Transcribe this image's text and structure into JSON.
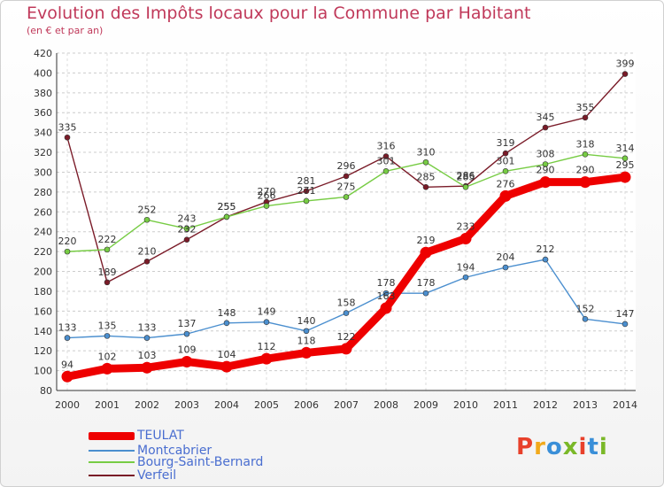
{
  "title": "Evolution des Impôts locaux pour la Commune par Habitant",
  "subtitle": "(en € et par an)",
  "logo": {
    "parts": [
      "P",
      "r",
      "o",
      "x",
      "i",
      "t",
      "i"
    ],
    "colors": [
      "#e8402a",
      "#f2a91b",
      "#3a8fd8",
      "#7ab828",
      "#e8402a",
      "#3a8fd8",
      "#7ab828"
    ]
  },
  "chart_data": {
    "type": "line",
    "title": "Evolution des Impôts locaux pour la Commune par Habitant",
    "subtitle": "(en € et par an)",
    "xlabel": "",
    "ylabel": "",
    "x": [
      2000,
      2001,
      2002,
      2003,
      2004,
      2005,
      2006,
      2007,
      2008,
      2009,
      2010,
      2011,
      2012,
      2013,
      2014
    ],
    "x_ticks": [
      "2000",
      "2001",
      "2002",
      "2003",
      "2004",
      "2005",
      "2006",
      "2007",
      "2008",
      "2009",
      "2010",
      "2011",
      "2012",
      "2013",
      "2014"
    ],
    "ylim": [
      80,
      420
    ],
    "y_ticks": [
      "80",
      "100",
      "120",
      "140",
      "160",
      "180",
      "200",
      "220",
      "240",
      "260",
      "280",
      "300",
      "320",
      "340",
      "360",
      "380",
      "400",
      "420"
    ],
    "grid": true,
    "series": [
      {
        "name": "TEULAT",
        "color": "#ee0000",
        "width": 9,
        "marker": 6,
        "values": [
          94,
          102,
          103,
          109,
          104,
          112,
          118,
          122,
          163,
          219,
          233,
          276,
          290,
          290,
          295
        ],
        "labels": [
          "94",
          "102",
          "103",
          "109",
          "104",
          "112",
          "118",
          "122",
          "163",
          "219",
          "233",
          "276",
          "290",
          "290",
          "295"
        ]
      },
      {
        "name": "Montcabrier",
        "color": "#4b8fcf",
        "width": 1.4,
        "marker": 3,
        "values": [
          133,
          135,
          133,
          137,
          148,
          149,
          140,
          158,
          178,
          178,
          194,
          204,
          212,
          152,
          147
        ],
        "labels": [
          "133",
          "135",
          "133",
          "137",
          "148",
          "149",
          "140",
          "158",
          "178",
          "178",
          "194",
          "204",
          "212",
          "152",
          "147"
        ]
      },
      {
        "name": "Bourg-Saint-Bernard",
        "color": "#77cc44",
        "width": 1.4,
        "marker": 3,
        "values": [
          220,
          222,
          252,
          243,
          255,
          266,
          271,
          275,
          301,
          310,
          285,
          301,
          308,
          318,
          314
        ],
        "labels": [
          "220",
          "222",
          "252",
          "243",
          "255",
          "266",
          "271",
          "275",
          "301",
          "310",
          "285",
          "301",
          "308",
          "318",
          "314"
        ]
      },
      {
        "name": "Verfeil",
        "color": "#7a1b28",
        "width": 1.4,
        "marker": 3,
        "values": [
          335,
          189,
          210,
          232,
          255,
          270,
          281,
          296,
          316,
          285,
          286,
          319,
          345,
          355,
          399
        ],
        "labels": [
          "335",
          "189",
          "210",
          "232",
          "255",
          "270",
          "281",
          "296",
          "316",
          "285",
          "286",
          "319",
          "345",
          "355",
          "399"
        ]
      }
    ],
    "legend": [
      "TEULAT",
      "Montcabrier",
      "Bourg-Saint-Bernard",
      "Verfeil"
    ]
  }
}
